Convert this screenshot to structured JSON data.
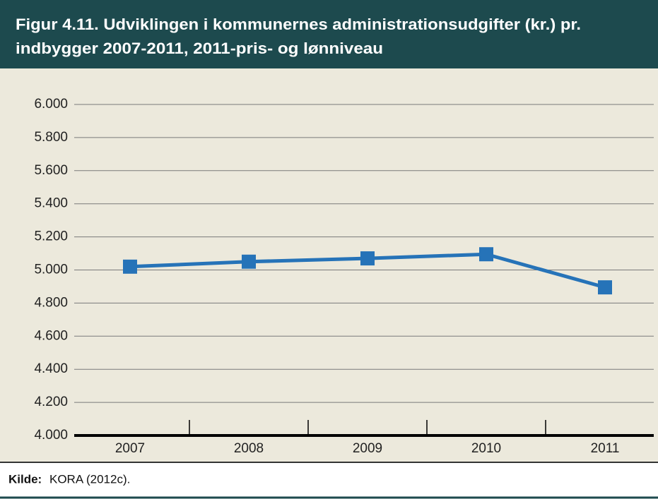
{
  "chart_data": {
    "type": "line",
    "title": [
      "Figur 4.11. Udviklingen i kommunernes administrationsudgifter (kr.) pr.",
      "indbygger 2007-2011, 2011-pris- og lønniveau"
    ],
    "categories": [
      "2007",
      "2008",
      "2009",
      "2010",
      "2011"
    ],
    "values": [
      5020,
      5050,
      5070,
      5095,
      4895
    ],
    "color": "#2673b8",
    "ylim": [
      4000,
      6000
    ],
    "yticks": [
      {
        "value": 4000,
        "label": "4.000"
      },
      {
        "value": 4200,
        "label": "4.200"
      },
      {
        "value": 4400,
        "label": "4.400"
      },
      {
        "value": 4600,
        "label": "4.600"
      },
      {
        "value": 4800,
        "label": "4.800"
      },
      {
        "value": 5000,
        "label": "5.000"
      },
      {
        "value": 5200,
        "label": "5.200"
      },
      {
        "value": 5400,
        "label": "5.400"
      },
      {
        "value": 5600,
        "label": "5.600"
      },
      {
        "value": 5800,
        "label": "5.800"
      },
      {
        "value": 6000,
        "label": "6.000"
      }
    ],
    "grid": true,
    "source_label": "Kilde:",
    "source_text": "KORA (2012c)."
  }
}
